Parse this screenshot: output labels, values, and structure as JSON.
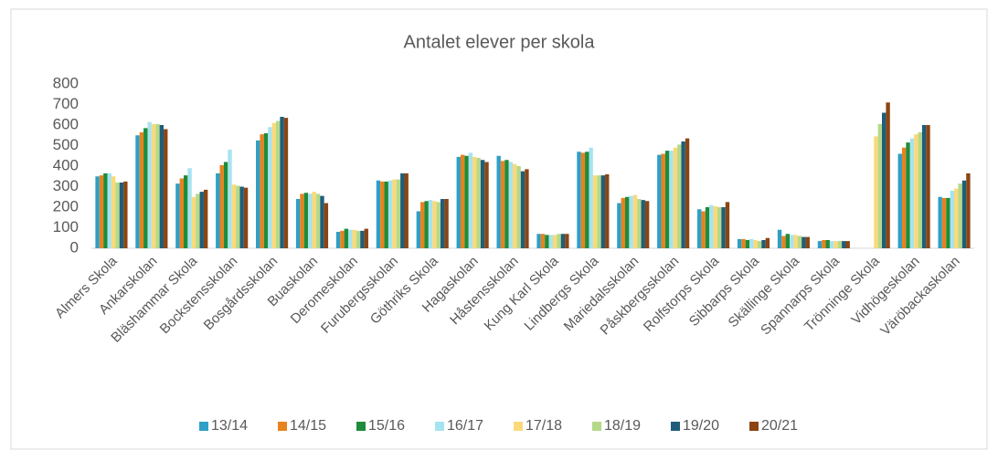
{
  "chart_data": {
    "type": "bar",
    "title": "Antalet elever per skola",
    "categories": [
      "Almers Skola",
      "Ankarskolan",
      "Bläshammar Skola",
      "Bockstensskolan",
      "Bosgårdsskolan",
      "Buaskolan",
      "Deromeskolan",
      "Furubergsskolan",
      "Göthriks Skola",
      "Hagaskolan",
      "Håstensskolan",
      "Kung Karl Skola",
      "Lindbergs Skola",
      "Mariedalsskolan",
      "Påskbergsskolan",
      "Rolfstorps Skola",
      "Sibbarps Skola",
      "Skällinge Skola",
      "Spannarps Skola",
      "Trönninge Skola",
      "Vidhögeskolan",
      "Väröbackaskolan"
    ],
    "series": [
      {
        "name": "13/14",
        "color": "#2e9fc7",
        "values": [
          350,
          550,
          315,
          365,
          525,
          240,
          80,
          330,
          180,
          445,
          450,
          70,
          470,
          220,
          455,
          190,
          45,
          90,
          35,
          null,
          460,
          250
        ]
      },
      {
        "name": "14/15",
        "color": "#e8821e",
        "values": [
          355,
          565,
          340,
          405,
          555,
          265,
          85,
          325,
          225,
          455,
          425,
          70,
          465,
          245,
          460,
          180,
          45,
          60,
          40,
          null,
          490,
          245
        ]
      },
      {
        "name": "15/16",
        "color": "#1e8c3a",
        "values": [
          365,
          585,
          355,
          420,
          560,
          270,
          95,
          325,
          230,
          450,
          430,
          65,
          470,
          250,
          475,
          200,
          40,
          70,
          40,
          null,
          515,
          245
        ]
      },
      {
        "name": "16/17",
        "color": "#a6e3f0",
        "values": [
          365,
          615,
          390,
          480,
          590,
          265,
          90,
          330,
          235,
          465,
          420,
          65,
          490,
          255,
          475,
          210,
          45,
          65,
          35,
          null,
          535,
          280
        ]
      },
      {
        "name": "17/18",
        "color": "#fbd97a",
        "values": [
          350,
          605,
          250,
          310,
          610,
          275,
          90,
          335,
          230,
          445,
          410,
          65,
          355,
          260,
          490,
          205,
          40,
          65,
          35,
          545,
          555,
          290
        ]
      },
      {
        "name": "18/19",
        "color": "#b5d98a",
        "values": [
          320,
          605,
          265,
          305,
          620,
          265,
          85,
          335,
          225,
          440,
          400,
          70,
          355,
          240,
          505,
          200,
          35,
          60,
          35,
          605,
          565,
          315
        ]
      },
      {
        "name": "19/20",
        "color": "#1f5e7a",
        "values": [
          320,
          600,
          275,
          300,
          640,
          255,
          85,
          365,
          240,
          430,
          375,
          70,
          355,
          235,
          520,
          200,
          40,
          55,
          35,
          660,
          600,
          330
        ]
      },
      {
        "name": "20/21",
        "color": "#8b4513",
        "values": [
          325,
          580,
          285,
          295,
          635,
          220,
          95,
          365,
          240,
          420,
          385,
          70,
          360,
          230,
          535,
          225,
          50,
          55,
          35,
          710,
          600,
          365
        ]
      }
    ],
    "ylim": [
      0,
      800
    ],
    "yticks": [
      0,
      100,
      200,
      300,
      400,
      500,
      600,
      700,
      800
    ],
    "grid": false,
    "legend": "bottom"
  }
}
